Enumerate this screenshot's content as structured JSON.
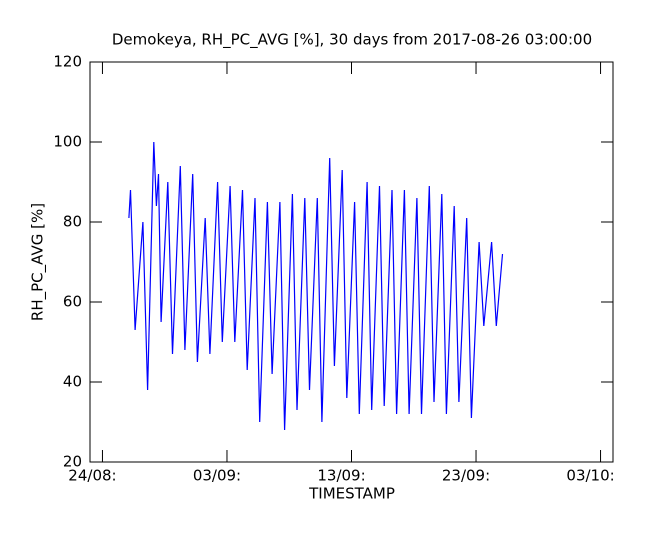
{
  "chart_data": {
    "type": "line",
    "title": "Demokeya, RH_PC_AVG [%], 30 days from  2017-08-26 03:00:00",
    "x_label": "TIMESTAMP",
    "y_label": "RH_PC_AVG [%]",
    "xlim": [
      "2017-08-23 00:00",
      "2017-10-04 00:00"
    ],
    "xticks": [
      {
        "value": "2017-08-24 00:00",
        "label": "24/08:"
      },
      {
        "value": "2017-09-03 00:00",
        "label": "03/09:"
      },
      {
        "value": "2017-09-13 00:00",
        "label": "13/09:"
      },
      {
        "value": "2017-09-23 00:00",
        "label": "23/09:"
      },
      {
        "value": "2017-10-03 00:00",
        "label": "03/10:"
      }
    ],
    "ylim": [
      20,
      120
    ],
    "yticks": [
      20,
      40,
      60,
      80,
      100,
      120
    ],
    "x": [
      "2017-08-26 03:00",
      "2017-08-26 06:00",
      "2017-08-26 15:00",
      "2017-08-27 06:00",
      "2017-08-27 15:00",
      "2017-08-28 03:00",
      "2017-08-28 08:00",
      "2017-08-28 12:00",
      "2017-08-28 17:00",
      "2017-08-29 06:00",
      "2017-08-29 15:00",
      "2017-08-30 06:00",
      "2017-08-30 15:00",
      "2017-08-31 06:00",
      "2017-08-31 15:00",
      "2017-09-01 06:00",
      "2017-09-01 15:00",
      "2017-09-02 06:00",
      "2017-09-02 15:00",
      "2017-09-03 06:00",
      "2017-09-03 15:00",
      "2017-09-04 06:00",
      "2017-09-04 15:00",
      "2017-09-05 06:00",
      "2017-09-05 15:00",
      "2017-09-06 06:00",
      "2017-09-06 15:00",
      "2017-09-07 06:00",
      "2017-09-07 15:00",
      "2017-09-08 06:00",
      "2017-09-08 15:00",
      "2017-09-09 06:00",
      "2017-09-09 15:00",
      "2017-09-10 06:00",
      "2017-09-10 15:00",
      "2017-09-11 06:00",
      "2017-09-11 15:00",
      "2017-09-12 06:00",
      "2017-09-12 15:00",
      "2017-09-13 06:00",
      "2017-09-13 15:00",
      "2017-09-14 06:00",
      "2017-09-14 15:00",
      "2017-09-15 06:00",
      "2017-09-15 15:00",
      "2017-09-16 06:00",
      "2017-09-16 15:00",
      "2017-09-17 06:00",
      "2017-09-17 15:00",
      "2017-09-18 06:00",
      "2017-09-18 15:00",
      "2017-09-19 06:00",
      "2017-09-19 15:00",
      "2017-09-20 06:00",
      "2017-09-20 15:00",
      "2017-09-21 06:00",
      "2017-09-21 15:00",
      "2017-09-22 06:00",
      "2017-09-22 15:00",
      "2017-09-23 06:00",
      "2017-09-23 15:00",
      "2017-09-24 06:00",
      "2017-09-24 15:00",
      "2017-09-25 03:00"
    ],
    "series": [
      {
        "name": "RH_PC_AVG",
        "color": "#0000ff",
        "values": [
          81,
          88,
          53,
          80,
          38,
          100,
          84,
          92,
          55,
          90,
          47,
          94,
          48,
          92,
          45,
          81,
          47,
          90,
          50,
          89,
          50,
          88,
          43,
          86,
          30,
          85,
          42,
          85,
          28,
          87,
          33,
          86,
          38,
          86,
          30,
          96,
          44,
          93,
          36,
          85,
          32,
          90,
          33,
          89,
          34,
          88,
          32,
          88,
          32,
          86,
          32,
          89,
          35,
          87,
          32,
          84,
          35,
          81,
          31,
          75,
          54,
          75,
          54,
          72
        ]
      }
    ]
  }
}
